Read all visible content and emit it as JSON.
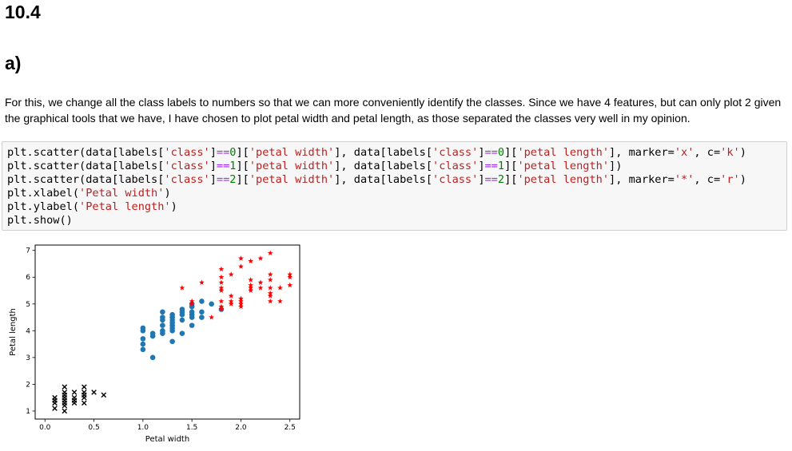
{
  "heading_main": "10.4",
  "heading_sub": "a)",
  "paragraph": "For this, we change all the class labels to numbers so that we can more conveniently identify the classes. Since we have 4 features, but can only plot 2 given the graphical tools that we have, I have chosen to plot petal width and petal length, as those separated the classes very well in my opinion.",
  "code_lines": [
    [
      [
        "t",
        "plt.scatter(data[labels["
      ],
      [
        "s",
        "'class'"
      ],
      [
        "t",
        "]"
      ],
      [
        "o",
        "=="
      ],
      [
        "n",
        "0"
      ],
      [
        "t",
        "]["
      ],
      [
        "s",
        "'petal width'"
      ],
      [
        "t",
        "], data[labels["
      ],
      [
        "s",
        "'class'"
      ],
      [
        "t",
        "]"
      ],
      [
        "o",
        "=="
      ],
      [
        "n",
        "0"
      ],
      [
        "t",
        "]["
      ],
      [
        "s",
        "'petal length'"
      ],
      [
        "t",
        "], marker="
      ],
      [
        "s",
        "'x'"
      ],
      [
        "t",
        ", c="
      ],
      [
        "s",
        "'k'"
      ],
      [
        "t",
        ")"
      ]
    ],
    [
      [
        "t",
        "plt.scatter(data[labels["
      ],
      [
        "s",
        "'class'"
      ],
      [
        "t",
        "]"
      ],
      [
        "o",
        "=="
      ],
      [
        "n",
        "1"
      ],
      [
        "t",
        "]["
      ],
      [
        "s",
        "'petal width'"
      ],
      [
        "t",
        "], data[labels["
      ],
      [
        "s",
        "'class'"
      ],
      [
        "t",
        "]"
      ],
      [
        "o",
        "=="
      ],
      [
        "n",
        "1"
      ],
      [
        "t",
        "]["
      ],
      [
        "s",
        "'petal length'"
      ],
      [
        "t",
        "])"
      ]
    ],
    [
      [
        "t",
        "plt.scatter(data[labels["
      ],
      [
        "s",
        "'class'"
      ],
      [
        "t",
        "]"
      ],
      [
        "o",
        "=="
      ],
      [
        "n",
        "2"
      ],
      [
        "t",
        "]["
      ],
      [
        "s",
        "'petal width'"
      ],
      [
        "t",
        "], data[labels["
      ],
      [
        "s",
        "'class'"
      ],
      [
        "t",
        "]"
      ],
      [
        "o",
        "=="
      ],
      [
        "n",
        "2"
      ],
      [
        "t",
        "]["
      ],
      [
        "s",
        "'petal length'"
      ],
      [
        "t",
        "], marker="
      ],
      [
        "s",
        "'*'"
      ],
      [
        "t",
        ", c="
      ],
      [
        "s",
        "'r'"
      ],
      [
        "t",
        ")"
      ]
    ],
    [
      [
        "t",
        "plt.xlabel("
      ],
      [
        "s",
        "'Petal width'"
      ],
      [
        "t",
        ")"
      ]
    ],
    [
      [
        "t",
        "plt.ylabel("
      ],
      [
        "s",
        "'Petal length'"
      ],
      [
        "t",
        ")"
      ]
    ],
    [
      [
        "t",
        "plt.show()"
      ]
    ]
  ],
  "chart_data": {
    "type": "scatter",
    "xlabel": "Petal width",
    "ylabel": "Petal length",
    "xlim": [
      -0.1,
      2.6
    ],
    "ylim": [
      0.7,
      7.2
    ],
    "xticks": [
      "0.0",
      "0.5",
      "1.0",
      "1.5",
      "2.0",
      "2.5"
    ],
    "yticks": [
      "1",
      "2",
      "3",
      "4",
      "5",
      "6",
      "7"
    ],
    "grid": false,
    "series": [
      {
        "marker": "x",
        "color": "#000000",
        "points": [
          [
            0.1,
            1.4
          ],
          [
            0.1,
            1.5
          ],
          [
            0.1,
            1.1
          ],
          [
            0.1,
            1.3
          ],
          [
            0.2,
            1.0
          ],
          [
            0.2,
            1.2
          ],
          [
            0.2,
            1.3
          ],
          [
            0.2,
            1.4
          ],
          [
            0.2,
            1.5
          ],
          [
            0.2,
            1.6
          ],
          [
            0.2,
            1.7
          ],
          [
            0.2,
            1.9
          ],
          [
            0.3,
            1.3
          ],
          [
            0.3,
            1.4
          ],
          [
            0.3,
            1.5
          ],
          [
            0.3,
            1.7
          ],
          [
            0.4,
            1.3
          ],
          [
            0.4,
            1.5
          ],
          [
            0.4,
            1.6
          ],
          [
            0.4,
            1.7
          ],
          [
            0.4,
            1.9
          ],
          [
            0.5,
            1.7
          ],
          [
            0.6,
            1.6
          ]
        ]
      },
      {
        "marker": "o",
        "color": "#1f77b4",
        "points": [
          [
            1.0,
            3.3
          ],
          [
            1.0,
            3.5
          ],
          [
            1.0,
            3.7
          ],
          [
            1.0,
            4.0
          ],
          [
            1.0,
            4.1
          ],
          [
            1.1,
            3.0
          ],
          [
            1.1,
            3.8
          ],
          [
            1.1,
            3.9
          ],
          [
            1.2,
            3.9
          ],
          [
            1.2,
            4.0
          ],
          [
            1.2,
            4.2
          ],
          [
            1.2,
            4.4
          ],
          [
            1.2,
            4.5
          ],
          [
            1.2,
            4.7
          ],
          [
            1.3,
            3.6
          ],
          [
            1.3,
            4.0
          ],
          [
            1.3,
            4.1
          ],
          [
            1.3,
            4.2
          ],
          [
            1.3,
            4.3
          ],
          [
            1.3,
            4.4
          ],
          [
            1.3,
            4.5
          ],
          [
            1.3,
            4.6
          ],
          [
            1.4,
            3.9
          ],
          [
            1.4,
            4.4
          ],
          [
            1.4,
            4.6
          ],
          [
            1.4,
            4.7
          ],
          [
            1.4,
            4.8
          ],
          [
            1.5,
            4.2
          ],
          [
            1.5,
            4.5
          ],
          [
            1.5,
            4.6
          ],
          [
            1.5,
            4.7
          ],
          [
            1.5,
            4.9
          ],
          [
            1.5,
            5.0
          ],
          [
            1.6,
            4.5
          ],
          [
            1.6,
            4.7
          ],
          [
            1.6,
            5.1
          ],
          [
            1.7,
            5.0
          ],
          [
            1.8,
            4.8
          ]
        ]
      },
      {
        "marker": "*",
        "color": "#ff0000",
        "points": [
          [
            1.4,
            5.6
          ],
          [
            1.5,
            5.0
          ],
          [
            1.5,
            5.1
          ],
          [
            1.6,
            5.8
          ],
          [
            1.7,
            4.5
          ],
          [
            1.8,
            4.8
          ],
          [
            1.8,
            4.9
          ],
          [
            1.8,
            5.1
          ],
          [
            1.8,
            5.5
          ],
          [
            1.8,
            5.6
          ],
          [
            1.8,
            5.8
          ],
          [
            1.8,
            6.0
          ],
          [
            1.8,
            6.3
          ],
          [
            1.9,
            5.0
          ],
          [
            1.9,
            5.1
          ],
          [
            1.9,
            5.3
          ],
          [
            1.9,
            6.1
          ],
          [
            2.0,
            4.9
          ],
          [
            2.0,
            5.0
          ],
          [
            2.0,
            5.1
          ],
          [
            2.0,
            5.2
          ],
          [
            2.0,
            6.4
          ],
          [
            2.0,
            6.7
          ],
          [
            2.1,
            5.5
          ],
          [
            2.1,
            5.6
          ],
          [
            2.1,
            5.7
          ],
          [
            2.1,
            5.9
          ],
          [
            2.1,
            6.6
          ],
          [
            2.2,
            5.6
          ],
          [
            2.2,
            5.8
          ],
          [
            2.2,
            6.7
          ],
          [
            2.3,
            5.1
          ],
          [
            2.3,
            5.3
          ],
          [
            2.3,
            5.4
          ],
          [
            2.3,
            5.6
          ],
          [
            2.3,
            5.9
          ],
          [
            2.3,
            6.1
          ],
          [
            2.3,
            6.9
          ],
          [
            2.4,
            5.1
          ],
          [
            2.4,
            5.6
          ],
          [
            2.5,
            5.7
          ],
          [
            2.5,
            6.0
          ],
          [
            2.5,
            6.1
          ]
        ]
      }
    ]
  }
}
